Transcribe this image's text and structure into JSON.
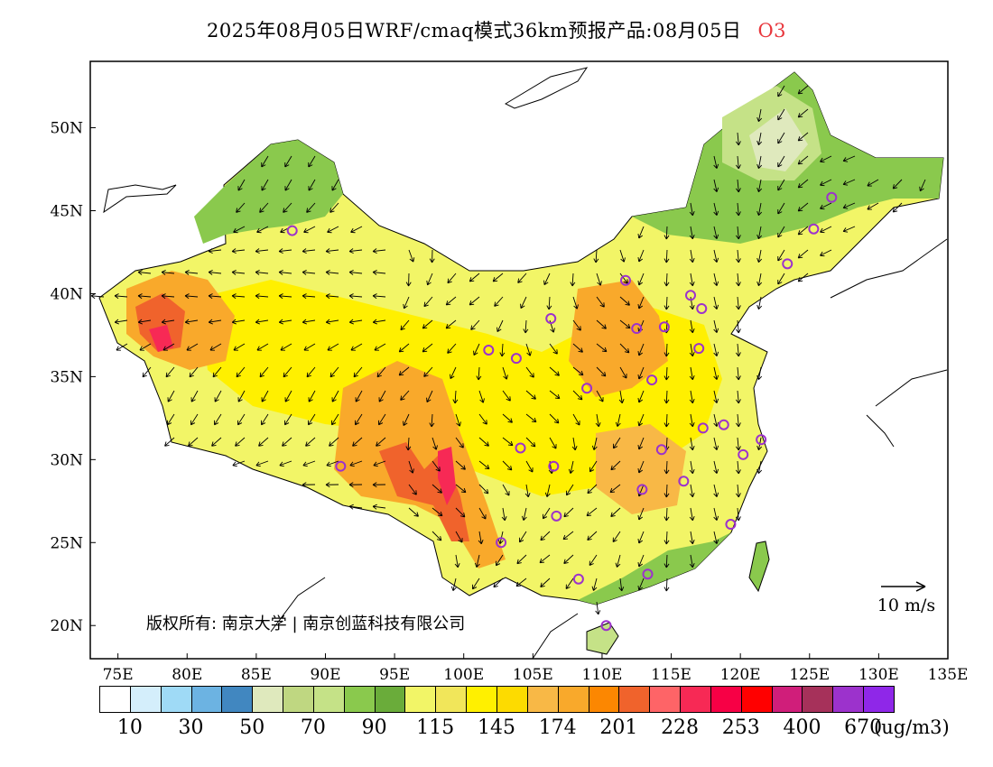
{
  "header": {
    "title": "2025年08月05日WRF/cmaq模式36km预报产品:08月05日",
    "species": "O3"
  },
  "axes": {
    "lon_labels": [
      "75E",
      "80E",
      "85E",
      "90E",
      "95E",
      "100E",
      "105E",
      "110E",
      "115E",
      "120E",
      "125E",
      "130E",
      "135E"
    ],
    "lat_labels": [
      "50N",
      "45N",
      "40N",
      "35N",
      "30N",
      "25N",
      "20N"
    ],
    "lon_range": [
      73,
      135
    ],
    "lat_range": [
      18,
      54
    ]
  },
  "wind_legend": {
    "label": "10 m/s"
  },
  "copyright": "版权所有: 南京大学 | 南京创蓝科技有限公司",
  "colorbar": {
    "colors": [
      "#ffffff",
      "#d4eefb",
      "#9fdaf6",
      "#6cb3e2",
      "#4187c0",
      "#dfe9bd",
      "#bfd781",
      "#c5e287",
      "#8ac94d",
      "#6aac3a",
      "#f2f567",
      "#f1e65a",
      "#fff000",
      "#fddb00",
      "#f8b846",
      "#f9a92b",
      "#fc8701",
      "#f0632c",
      "#fe6467",
      "#f72955",
      "#f70045",
      "#ff0000",
      "#d01e7a",
      "#a6315a",
      "#9c32cc",
      "#8f27e8"
    ],
    "labels": [
      "10",
      "30",
      "50",
      "70",
      "90",
      "115",
      "145",
      "174",
      "201",
      "228",
      "253",
      "400",
      "670"
    ],
    "unit": "(ug/m3)"
  },
  "stations": [
    {
      "lon": 87.6,
      "lat": 43.8
    },
    {
      "lon": 91.1,
      "lat": 29.6
    },
    {
      "lon": 101.8,
      "lat": 36.6
    },
    {
      "lon": 103.8,
      "lat": 36.1
    },
    {
      "lon": 106.3,
      "lat": 38.5
    },
    {
      "lon": 104.1,
      "lat": 30.7
    },
    {
      "lon": 106.5,
      "lat": 29.6
    },
    {
      "lon": 102.7,
      "lat": 25.0
    },
    {
      "lon": 106.7,
      "lat": 26.6
    },
    {
      "lon": 108.9,
      "lat": 34.3
    },
    {
      "lon": 111.7,
      "lat": 40.8
    },
    {
      "lon": 112.5,
      "lat": 37.9
    },
    {
      "lon": 114.5,
      "lat": 38.0
    },
    {
      "lon": 113.6,
      "lat": 34.8
    },
    {
      "lon": 116.4,
      "lat": 39.9
    },
    {
      "lon": 117.2,
      "lat": 39.1
    },
    {
      "lon": 117.0,
      "lat": 36.7
    },
    {
      "lon": 117.3,
      "lat": 31.9
    },
    {
      "lon": 118.8,
      "lat": 32.1
    },
    {
      "lon": 121.5,
      "lat": 31.2
    },
    {
      "lon": 120.2,
      "lat": 30.3
    },
    {
      "lon": 114.3,
      "lat": 30.6
    },
    {
      "lon": 112.9,
      "lat": 28.2
    },
    {
      "lon": 115.9,
      "lat": 28.7
    },
    {
      "lon": 119.3,
      "lat": 26.1
    },
    {
      "lon": 113.3,
      "lat": 23.1
    },
    {
      "lon": 108.3,
      "lat": 22.8
    },
    {
      "lon": 110.3,
      "lat": 20.0
    },
    {
      "lon": 123.4,
      "lat": 41.8
    },
    {
      "lon": 125.3,
      "lat": 43.9
    },
    {
      "lon": 126.6,
      "lat": 45.8
    }
  ]
}
